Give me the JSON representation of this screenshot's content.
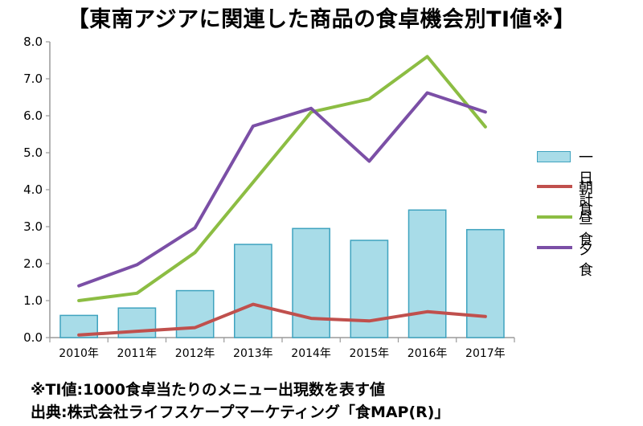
{
  "title": "【東南アジアに関連した商品の食卓機会別TI値※】",
  "notes": {
    "line1": "※TI値:1000食卓当たりのメニュー出現数を表す値",
    "line2": "出典:株式会社ライフスケープマーケティング「食MAP(R)」"
  },
  "colors": {
    "bar_fill": "#a8dce8",
    "bar_stroke": "#3fa3bf",
    "breakfast": "#c0504d",
    "lunch": "#8cbd43",
    "dinner": "#7b4fa6",
    "axis": "#9a9a9a"
  },
  "chart_data": {
    "type": "bar",
    "categories": [
      "2010年",
      "2011年",
      "2012年",
      "2013年",
      "2014年",
      "2015年",
      "2016年",
      "2017年"
    ],
    "ylim": [
      0,
      8
    ],
    "yticks": [
      "0.0",
      "1.0",
      "2.0",
      "3.0",
      "4.0",
      "5.0",
      "6.0",
      "7.0",
      "8.0"
    ],
    "xlabel": "",
    "ylabel": "",
    "grid": false,
    "legend_position": "right",
    "series": [
      {
        "name": "一日計",
        "type": "bar",
        "values": [
          0.6,
          0.8,
          1.27,
          2.52,
          2.95,
          2.63,
          3.45,
          2.92
        ]
      },
      {
        "name": "朝食",
        "type": "line",
        "values": [
          0.07,
          0.17,
          0.27,
          0.9,
          0.52,
          0.45,
          0.7,
          0.57
        ]
      },
      {
        "name": "昼食",
        "type": "line",
        "values": [
          1.0,
          1.2,
          2.3,
          4.2,
          6.1,
          6.45,
          7.6,
          5.7
        ]
      },
      {
        "name": "夕食",
        "type": "line",
        "values": [
          1.4,
          1.97,
          2.97,
          5.72,
          6.2,
          4.77,
          6.62,
          6.1
        ]
      }
    ]
  }
}
